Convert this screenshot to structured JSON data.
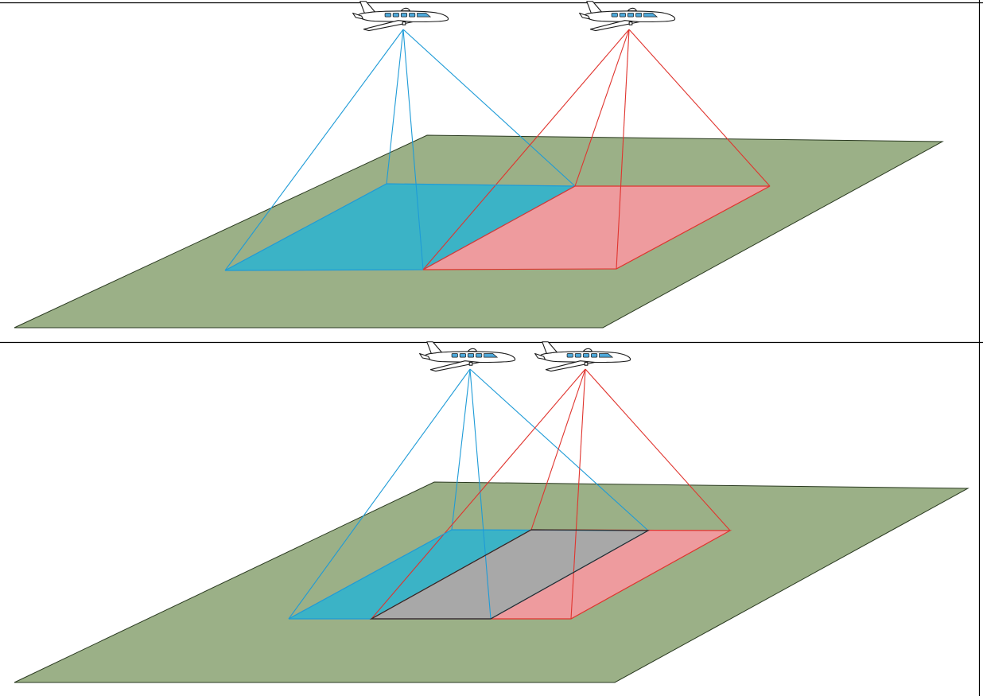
{
  "colors": {
    "background": "#ffffff",
    "ground": "#9BB087",
    "ground_edge": "#2a3a20",
    "frame_line": "#000000",
    "left_footprint_fill": "#3BB3C6",
    "left_footprint_line": "#1E9BD7",
    "right_footprint_fill": "#EE9B9E",
    "right_footprint_line": "#E0342E",
    "overlap_fill": "#A8A8A8",
    "overlap_line": "#2a2a2a",
    "aircraft_body": "#ffffff",
    "aircraft_outline": "#1a1a1a",
    "aircraft_window": "#4DA8DA"
  },
  "panels": [
    {
      "id": "no-overlap",
      "aircraft": [
        {
          "color_key": "left",
          "icon": "aircraft-icon"
        },
        {
          "color_key": "right",
          "icon": "aircraft-icon"
        }
      ]
    },
    {
      "id": "with-overlap",
      "aircraft": [
        {
          "color_key": "left",
          "icon": "aircraft-icon"
        },
        {
          "color_key": "right",
          "icon": "aircraft-icon"
        }
      ]
    }
  ]
}
